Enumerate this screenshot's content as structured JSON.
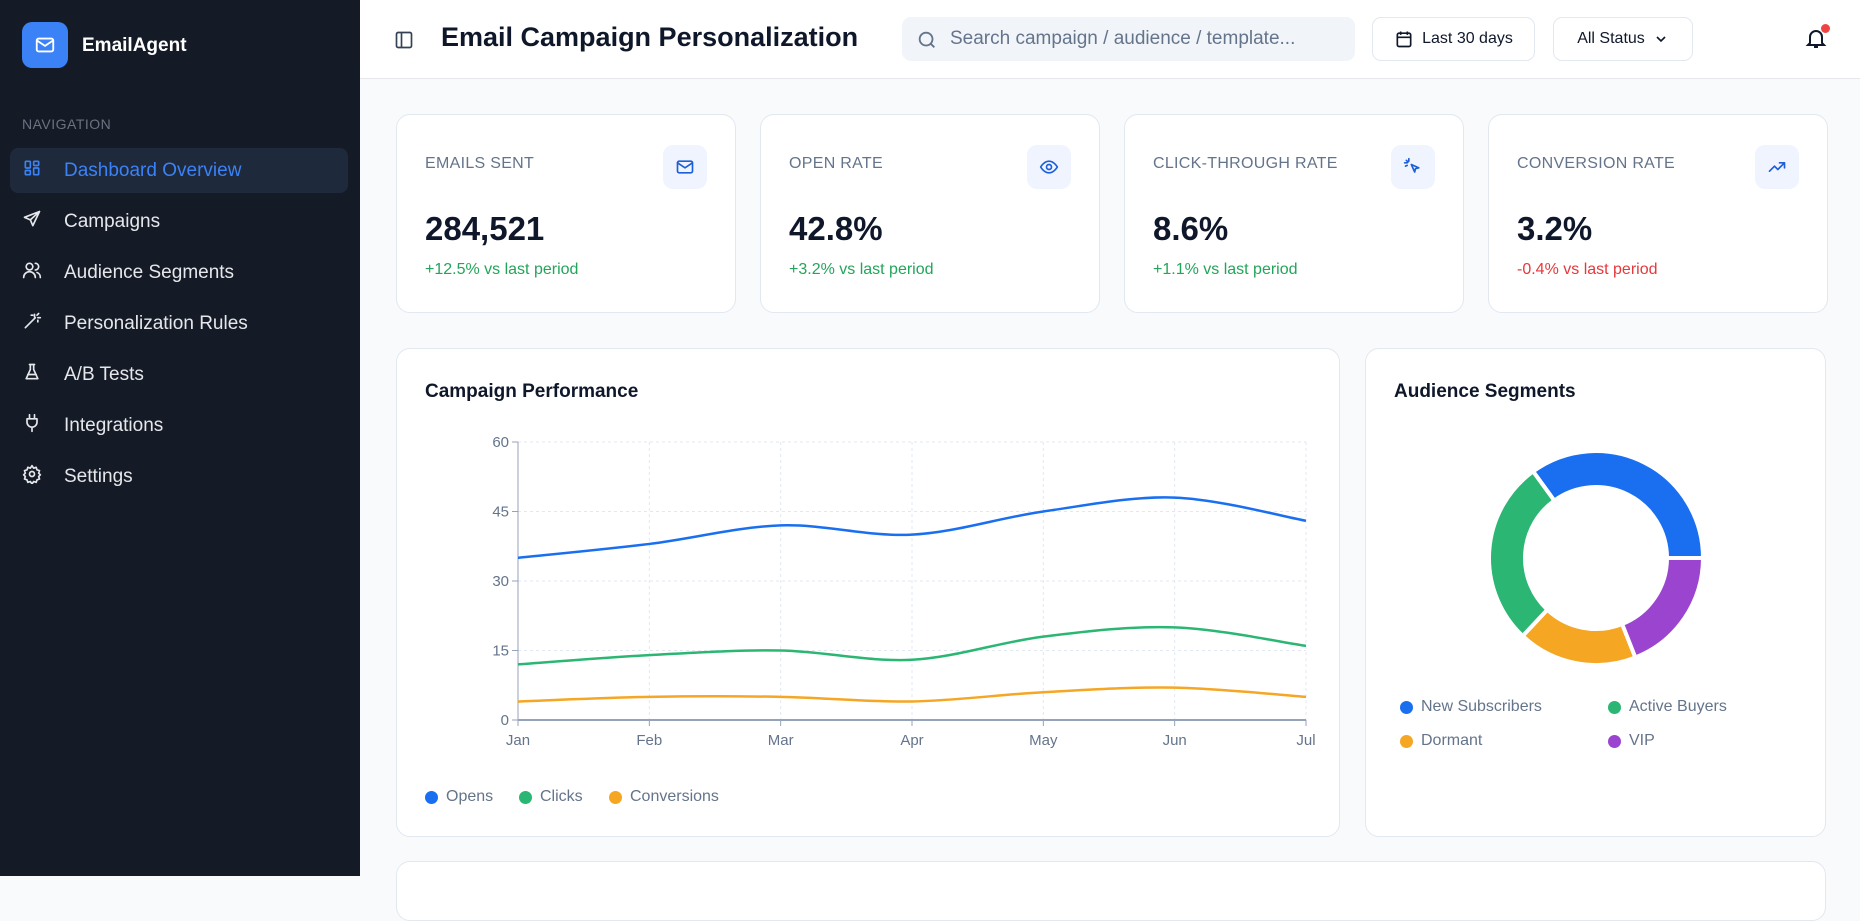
{
  "app": {
    "name": "EmailAgent"
  },
  "sidebar": {
    "section_label": "NAVIGATION",
    "items": [
      {
        "label": "Dashboard Overview",
        "icon": "dashboard-icon",
        "active": true
      },
      {
        "label": "Campaigns",
        "icon": "send-icon"
      },
      {
        "label": "Audience Segments",
        "icon": "users-icon"
      },
      {
        "label": "Personalization Rules",
        "icon": "wand-icon"
      },
      {
        "label": "A/B Tests",
        "icon": "flask-icon"
      },
      {
        "label": "Integrations",
        "icon": "plug-icon"
      },
      {
        "label": "Settings",
        "icon": "gear-icon"
      }
    ]
  },
  "header": {
    "title": "Email Campaign Personalization",
    "search_placeholder": "Search campaign / audience / template...",
    "date_range": "Last 30 days",
    "status_filter": "All Status"
  },
  "kpis": [
    {
      "label": "EMAILS SENT",
      "value": "284,521",
      "delta": "+12.5% vs last period",
      "trend": "up",
      "icon": "mail-icon"
    },
    {
      "label": "OPEN RATE",
      "value": "42.8%",
      "delta": "+3.2% vs last period",
      "trend": "up",
      "icon": "eye-icon"
    },
    {
      "label": "CLICK-THROUGH RATE",
      "value": "8.6%",
      "delta": "+1.1% vs last period",
      "trend": "up",
      "icon": "pointer-click-icon"
    },
    {
      "label": "CONVERSION RATE",
      "value": "3.2%",
      "delta": "-0.4% vs last period",
      "trend": "down",
      "icon": "trending-up-icon"
    }
  ],
  "colors": {
    "accent": "#3b82f6",
    "up": "#22a55a",
    "down": "#e5383b"
  },
  "chart_data": [
    {
      "type": "line",
      "title": "Campaign Performance",
      "categories": [
        "Jan",
        "Feb",
        "Mar",
        "Apr",
        "May",
        "Jun",
        "Jul"
      ],
      "ylim": [
        0,
        60
      ],
      "yticks": [
        0,
        15,
        30,
        45,
        60
      ],
      "grid": true,
      "legend": "bottom-left",
      "series": [
        {
          "name": "Opens",
          "color": "#1a6ff0",
          "values": [
            35,
            38,
            42,
            40,
            45,
            48,
            43
          ]
        },
        {
          "name": "Clicks",
          "color": "#2bb673",
          "values": [
            12,
            14,
            15,
            13,
            18,
            20,
            16
          ]
        },
        {
          "name": "Conversions",
          "color": "#f5a623",
          "values": [
            4,
            5,
            5,
            4,
            6,
            7,
            5
          ]
        }
      ]
    },
    {
      "type": "pie",
      "title": "Audience Segments",
      "legend": "bottom",
      "labels": [
        "New Subscribers",
        "Active Buyers",
        "Dormant",
        "VIP"
      ],
      "values": [
        35,
        28,
        18,
        19
      ],
      "colors": [
        "#1a6ff0",
        "#2bb673",
        "#f5a623",
        "#9b44d0"
      ]
    }
  ]
}
